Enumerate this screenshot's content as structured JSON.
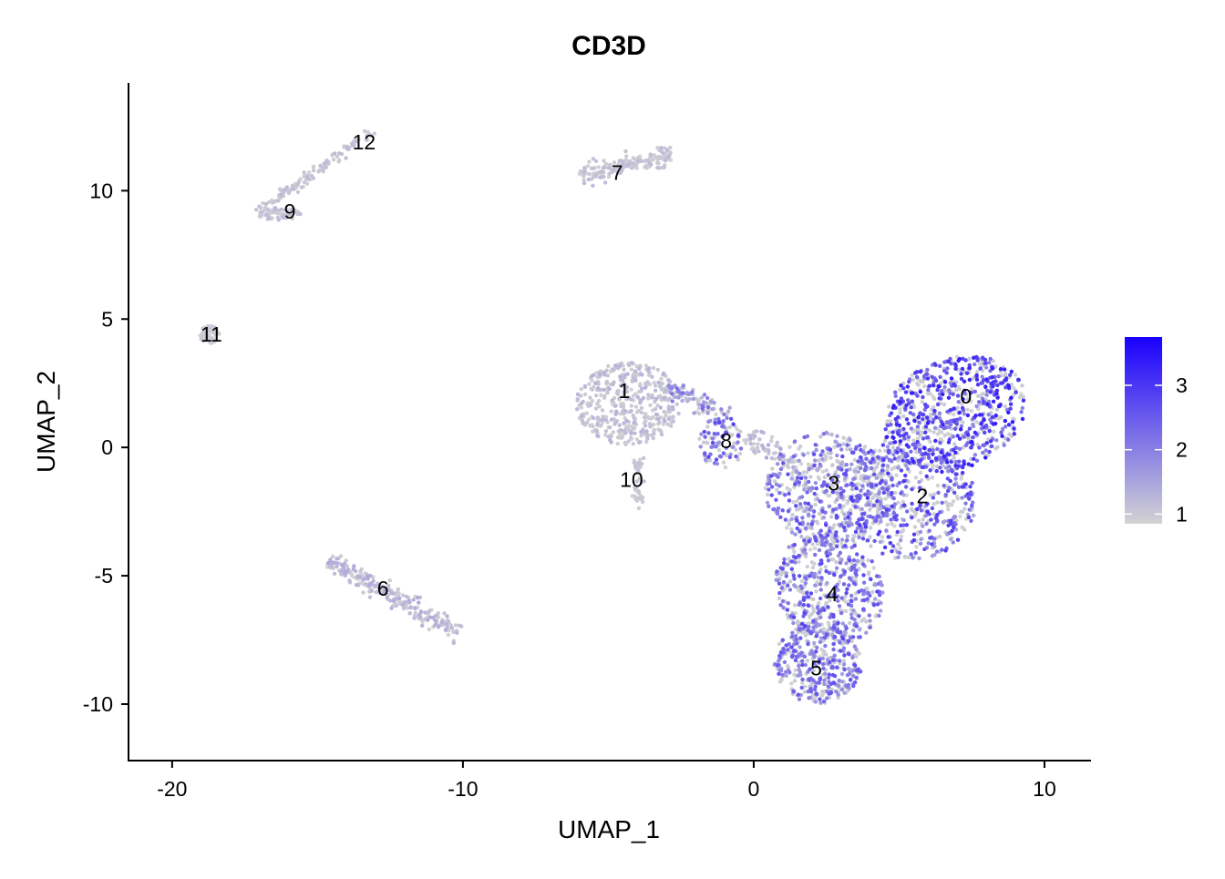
{
  "chart_data": {
    "type": "scatter",
    "title": "CD3D",
    "xlabel": "UMAP_1",
    "ylabel": "UMAP_2",
    "xlim": [
      -21.5,
      11.6
    ],
    "ylim": [
      -12.2,
      14.2
    ],
    "x_ticks": [
      {
        "value": -20,
        "label": "-20"
      },
      {
        "value": -10,
        "label": "-10"
      },
      {
        "value": 0,
        "label": "0"
      },
      {
        "value": 10,
        "label": "10"
      }
    ],
    "y_ticks": [
      {
        "value": -10,
        "label": "-10"
      },
      {
        "value": -5,
        "label": "-5"
      },
      {
        "value": 0,
        "label": "0"
      },
      {
        "value": 5,
        "label": "5"
      },
      {
        "value": 10,
        "label": "10"
      }
    ],
    "grid": false,
    "color_scale": {
      "low_color": "#d3d3d3",
      "high_color": "#1a00ff",
      "min": 0.85,
      "max": 3.75,
      "ticks": [
        {
          "value": 1,
          "label": "1"
        },
        {
          "value": 2,
          "label": "2"
        },
        {
          "value": 3,
          "label": "3"
        }
      ],
      "placement": "right"
    },
    "cluster_labels": [
      {
        "label": "0",
        "x": 7.3,
        "y": 2.0
      },
      {
        "label": "1",
        "x": -4.45,
        "y": 2.2
      },
      {
        "label": "2",
        "x": 5.8,
        "y": -1.9
      },
      {
        "label": "3",
        "x": 2.75,
        "y": -1.4
      },
      {
        "label": "4",
        "x": 2.7,
        "y": -5.7
      },
      {
        "label": "5",
        "x": 2.15,
        "y": -8.6
      },
      {
        "label": "6",
        "x": -12.75,
        "y": -5.5
      },
      {
        "label": "7",
        "x": -4.7,
        "y": 10.7
      },
      {
        "label": "8",
        "x": -0.95,
        "y": 0.25
      },
      {
        "label": "9",
        "x": -15.95,
        "y": 9.2
      },
      {
        "label": "10",
        "x": -4.2,
        "y": -1.25
      },
      {
        "label": "11",
        "x": -18.65,
        "y": 4.4
      },
      {
        "label": "12",
        "x": -13.4,
        "y": 11.9
      }
    ],
    "clusters": [
      {
        "id": "0",
        "points": 700,
        "shape": "ellipse",
        "cx": 6.9,
        "cy": 1.3,
        "rx": 2.6,
        "ry": 2.1,
        "angle": 35,
        "expr_base": 1.8,
        "expr_spread": 1.6
      },
      {
        "id": "2",
        "points": 520,
        "shape": "ellipse",
        "cx": 5.3,
        "cy": -2.0,
        "rx": 2.3,
        "ry": 2.4,
        "angle": 35,
        "expr_base": 1.4,
        "expr_spread": 1.6
      },
      {
        "id": "3",
        "points": 520,
        "shape": "ellipse",
        "cx": 2.6,
        "cy": -1.6,
        "rx": 2.2,
        "ry": 2.2,
        "angle": 30,
        "expr_base": 1.2,
        "expr_spread": 1.6
      },
      {
        "id": "4",
        "points": 480,
        "shape": "ellipse",
        "cx": 2.6,
        "cy": -5.5,
        "rx": 1.8,
        "ry": 2.2,
        "angle": 20,
        "expr_base": 1.5,
        "expr_spread": 1.3
      },
      {
        "id": "5",
        "points": 380,
        "shape": "ellipse",
        "cx": 2.2,
        "cy": -8.4,
        "rx": 1.5,
        "ry": 1.6,
        "angle": 15,
        "expr_base": 1.5,
        "expr_spread": 1.2
      },
      {
        "id": "1",
        "points": 420,
        "shape": "ellipse",
        "cx": -4.3,
        "cy": 1.7,
        "rx": 1.8,
        "ry": 1.6,
        "angle": 0,
        "expr_base": 0.9,
        "expr_spread": 0.4
      },
      {
        "id": "8",
        "points": 90,
        "shape": "ellipse",
        "cx": -1.1,
        "cy": 0.2,
        "rx": 0.8,
        "ry": 1.0,
        "angle": 0,
        "expr_base": 1.6,
        "expr_spread": 1.3
      },
      {
        "id": "10",
        "points": 40,
        "shape": "segment",
        "x0": -4.0,
        "y0": -0.4,
        "x1": -4.0,
        "y1": -2.4,
        "width": 0.2,
        "expr_base": 0.9,
        "expr_spread": 0.2
      },
      {
        "id": "1-8 bridge",
        "points": 90,
        "shape": "segment",
        "x0": -3.0,
        "y0": 2.4,
        "x1": -0.9,
        "y1": 1.2,
        "width": 0.35,
        "expr_base": 1.1,
        "expr_spread": 1.2
      },
      {
        "id": "8-3 bridge",
        "points": 60,
        "shape": "segment",
        "x0": -0.2,
        "y0": 0.5,
        "x1": 1.3,
        "y1": -0.7,
        "width": 0.45,
        "expr_base": 0.9,
        "expr_spread": 0.6
      },
      {
        "id": "7",
        "points": 160,
        "shape": "segment",
        "x0": -6.0,
        "y0": 10.6,
        "x1": -2.8,
        "y1": 11.4,
        "width": 0.4,
        "expr_base": 0.9,
        "expr_spread": 0.3
      },
      {
        "id": "9-12 arc",
        "points": 110,
        "shape": "segment",
        "x0": -17.1,
        "y0": 9.1,
        "x1": -13.1,
        "y1": 12.3,
        "width": 0.2,
        "expr_base": 0.9,
        "expr_spread": 0.3
      },
      {
        "id": "9",
        "points": 60,
        "shape": "ellipse",
        "cx": -16.3,
        "cy": 9.1,
        "rx": 0.8,
        "ry": 0.25,
        "angle": 0,
        "expr_base": 0.9,
        "expr_spread": 0.3
      },
      {
        "id": "11",
        "points": 70,
        "shape": "ellipse",
        "cx": -18.7,
        "cy": 4.4,
        "rx": 0.35,
        "ry": 0.35,
        "angle": 0,
        "expr_base": 0.88,
        "expr_spread": 0.1
      },
      {
        "id": "6",
        "points": 240,
        "shape": "segment",
        "x0": -14.6,
        "y0": -4.4,
        "x1": -10.1,
        "y1": -7.3,
        "width": 0.35,
        "expr_base": 0.95,
        "expr_spread": 0.5
      }
    ]
  }
}
